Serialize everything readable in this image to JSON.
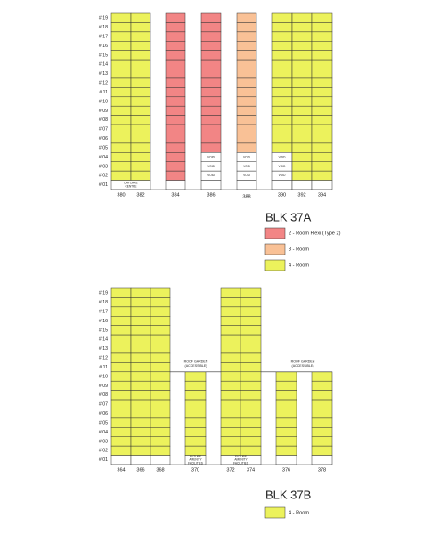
{
  "blocks": [
    {
      "title": "BLK 37A",
      "floors": [
        "# 19",
        "# 18",
        "# 17",
        "# 16",
        "# 15",
        "# 14",
        "# 13",
        "# 12",
        "# 11",
        "# 10",
        "# 09",
        "# 08",
        "# 07",
        "# 06",
        "# 05",
        "# 04",
        "# 03",
        "# 02",
        "# 01"
      ],
      "units": [
        "380",
        "382",
        "384",
        "386",
        "388",
        "390",
        "392",
        "394"
      ],
      "cell_texts": [
        {
          "lines": [
            "DAYCARE",
            "CENTRE"
          ]
        },
        {
          "lines": [
            "VOID"
          ]
        },
        {
          "lines": [
            "VOID"
          ]
        },
        {
          "lines": [
            "VOID"
          ]
        },
        {
          "lines": [
            "VOID"
          ]
        },
        {
          "lines": [
            "VOID"
          ]
        },
        {
          "lines": [
            "VOID"
          ]
        },
        {
          "lines": [
            "VOID"
          ]
        },
        {
          "lines": [
            "VOID"
          ]
        },
        {
          "lines": [
            "VOID"
          ]
        }
      ],
      "legend": [
        {
          "color": "#f28585",
          "label": "2 - Room Flexi (Type 2)"
        },
        {
          "color": "#f9c196",
          "label": "3 - Room"
        },
        {
          "color": "#ecf25c",
          "label": "4 - Room"
        }
      ]
    },
    {
      "title": "BLK 37B",
      "floors": [
        "# 19",
        "# 18",
        "# 17",
        "# 16",
        "# 15",
        "# 14",
        "# 13",
        "# 12",
        "# 11",
        "# 10",
        "# 09",
        "# 08",
        "# 07",
        "# 06",
        "# 05",
        "# 04",
        "# 03",
        "# 02",
        "# 01"
      ],
      "units": [
        "364",
        "366",
        "368",
        "370",
        "372",
        "374",
        "376",
        "378"
      ],
      "cell_texts": [
        {
          "lines": [
            "ROOF GARDEN",
            "(ACCESSIBLE)"
          ]
        },
        {
          "lines": [
            "ROOF GARDEN",
            "(ACCESSIBLE)"
          ]
        },
        {
          "lines": [
            "FUTURE",
            "AMENITY",
            "FACILITIES"
          ]
        },
        {
          "lines": [
            "FUTURE",
            "AMENITY",
            "FACILITIES"
          ]
        }
      ],
      "legend": [
        {
          "color": "#ecf25c",
          "label": "4 - Room"
        }
      ]
    }
  ]
}
